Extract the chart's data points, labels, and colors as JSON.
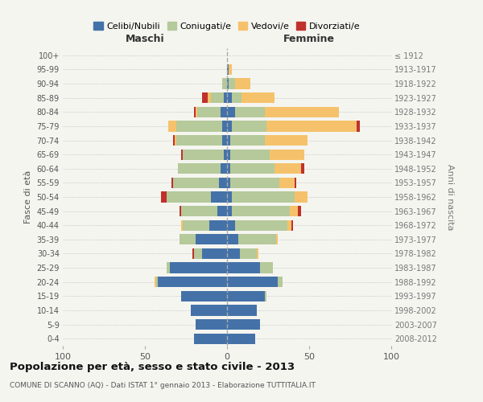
{
  "age_groups": [
    "0-4",
    "5-9",
    "10-14",
    "15-19",
    "20-24",
    "25-29",
    "30-34",
    "35-39",
    "40-44",
    "45-49",
    "50-54",
    "55-59",
    "60-64",
    "65-69",
    "70-74",
    "75-79",
    "80-84",
    "85-89",
    "90-94",
    "95-99",
    "100+"
  ],
  "birth_years": [
    "2008-2012",
    "2003-2007",
    "1998-2002",
    "1993-1997",
    "1988-1992",
    "1983-1987",
    "1978-1982",
    "1973-1977",
    "1968-1972",
    "1963-1967",
    "1958-1962",
    "1953-1957",
    "1948-1952",
    "1943-1947",
    "1938-1942",
    "1933-1937",
    "1928-1932",
    "1923-1927",
    "1918-1922",
    "1913-1917",
    "≤ 1912"
  ],
  "male_celibi": [
    20,
    19,
    22,
    28,
    42,
    35,
    15,
    19,
    11,
    6,
    10,
    5,
    4,
    2,
    3,
    3,
    4,
    2,
    0,
    0,
    0
  ],
  "male_coniugati": [
    0,
    0,
    0,
    0,
    1,
    2,
    5,
    10,
    16,
    22,
    27,
    28,
    26,
    25,
    28,
    28,
    14,
    8,
    3,
    0,
    0
  ],
  "male_vedovi": [
    0,
    0,
    0,
    0,
    1,
    0,
    0,
    0,
    1,
    0,
    0,
    0,
    0,
    0,
    1,
    5,
    1,
    2,
    0,
    0,
    0
  ],
  "male_divorziati": [
    0,
    0,
    0,
    0,
    0,
    0,
    1,
    0,
    0,
    1,
    3,
    1,
    0,
    1,
    1,
    0,
    1,
    3,
    0,
    0,
    0
  ],
  "female_nubili": [
    17,
    20,
    18,
    23,
    31,
    20,
    8,
    7,
    5,
    3,
    3,
    2,
    2,
    2,
    2,
    3,
    5,
    3,
    1,
    1,
    0
  ],
  "female_coniugate": [
    0,
    0,
    0,
    1,
    3,
    8,
    10,
    23,
    32,
    35,
    38,
    30,
    27,
    24,
    21,
    21,
    18,
    6,
    4,
    0,
    0
  ],
  "female_vedove": [
    0,
    0,
    0,
    0,
    0,
    0,
    1,
    1,
    2,
    5,
    8,
    9,
    16,
    21,
    26,
    55,
    45,
    20,
    9,
    2,
    0
  ],
  "female_divorziate": [
    0,
    0,
    0,
    0,
    0,
    0,
    0,
    0,
    1,
    2,
    0,
    1,
    2,
    0,
    0,
    2,
    0,
    0,
    0,
    0,
    0
  ],
  "color_celibi": "#4472a8",
  "color_coniugati": "#b5c99a",
  "color_vedovi": "#f5c26b",
  "color_divorziati": "#c0312b",
  "title": "Popolazione per età, sesso e stato civile - 2013",
  "subtitle": "COMUNE DI SCANNO (AQ) - Dati ISTAT 1° gennaio 2013 - Elaborazione TUTTITALIA.IT",
  "xlabel_left": "Maschi",
  "xlabel_right": "Femmine",
  "ylabel_left": "Fasce di età",
  "ylabel_right": "Anni di nascita",
  "xlim": 100,
  "bg_color": "#f5f5f0",
  "grid_color": "#cccccc"
}
